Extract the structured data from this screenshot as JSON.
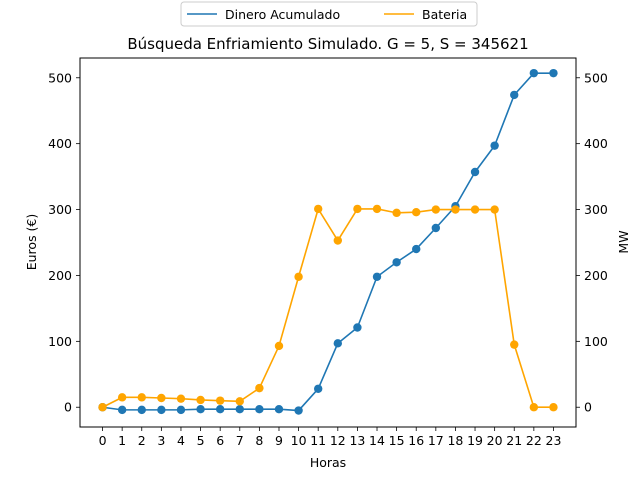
{
  "chart_data": {
    "type": "line",
    "title": "Búsqueda Enfriamiento Simulado. G = 5, S = 345621",
    "xlabel": "Horas",
    "ylabel": "Euros (€)",
    "y2label": "MW",
    "x": [
      0,
      1,
      2,
      3,
      4,
      5,
      6,
      7,
      8,
      9,
      10,
      11,
      12,
      13,
      14,
      15,
      16,
      17,
      18,
      19,
      20,
      21,
      22,
      23
    ],
    "ylim": [
      -30,
      530
    ],
    "y2lim": [
      -30,
      530
    ],
    "yticks": [
      0,
      100,
      200,
      300,
      400,
      500
    ],
    "y2ticks": [
      0,
      100,
      200,
      300,
      400,
      500
    ],
    "grid": false,
    "legend_position": "top-center",
    "series": [
      {
        "name": "Dinero Acumulado",
        "axis": "left",
        "color": "#1f77b4",
        "values": [
          0,
          -4,
          -4,
          -4,
          -4,
          -3,
          -3,
          -3,
          -3,
          -3,
          -5,
          28,
          97,
          121,
          198,
          220,
          240,
          272,
          305,
          357,
          397,
          474,
          507,
          507
        ]
      },
      {
        "name": "Bateria",
        "axis": "right",
        "color": "#ffa500",
        "values": [
          0,
          15,
          15,
          14,
          13,
          11,
          10,
          9,
          29,
          93,
          198,
          301,
          253,
          301,
          301,
          295,
          296,
          300,
          300,
          300,
          300,
          95,
          0,
          0
        ]
      }
    ]
  }
}
